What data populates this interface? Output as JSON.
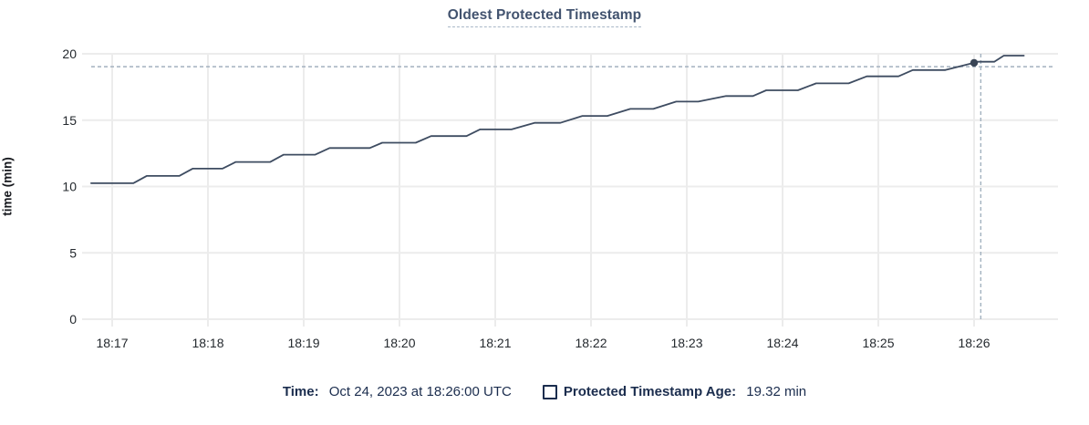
{
  "chart_data": {
    "type": "line",
    "title": "Oldest Protected Timestamp",
    "xlabel": "",
    "ylabel": "time (min)",
    "ylim": [
      0,
      20
    ],
    "y_ticks": [
      0,
      5,
      10,
      15,
      20
    ],
    "x_ticks": [
      "18:17",
      "18:18",
      "18:19",
      "18:20",
      "18:21",
      "18:22",
      "18:23",
      "18:24",
      "18:25",
      "18:26"
    ],
    "grid": true,
    "legend_position": "bottom",
    "series": [
      {
        "name": "Protected Timestamp Age",
        "unit": "min",
        "points_min_after_1817": [
          [
            -0.22,
            10.25
          ],
          [
            0.22,
            10.25
          ],
          [
            0.36,
            10.8
          ],
          [
            0.7,
            10.8
          ],
          [
            0.84,
            11.35
          ],
          [
            1.15,
            11.35
          ],
          [
            1.29,
            11.85
          ],
          [
            1.65,
            11.85
          ],
          [
            1.79,
            12.4
          ],
          [
            2.12,
            12.4
          ],
          [
            2.27,
            12.9
          ],
          [
            2.69,
            12.9
          ],
          [
            2.82,
            13.3
          ],
          [
            3.17,
            13.3
          ],
          [
            3.33,
            13.8
          ],
          [
            3.7,
            13.8
          ],
          [
            3.84,
            14.3
          ],
          [
            4.17,
            14.3
          ],
          [
            4.41,
            14.8
          ],
          [
            4.68,
            14.8
          ],
          [
            4.91,
            15.32
          ],
          [
            5.17,
            15.32
          ],
          [
            5.41,
            15.85
          ],
          [
            5.65,
            15.85
          ],
          [
            5.89,
            16.4
          ],
          [
            6.12,
            16.4
          ],
          [
            6.41,
            16.82
          ],
          [
            6.69,
            16.82
          ],
          [
            6.83,
            17.25
          ],
          [
            7.16,
            17.25
          ],
          [
            7.35,
            17.77
          ],
          [
            7.69,
            17.77
          ],
          [
            7.88,
            18.3
          ],
          [
            8.21,
            18.3
          ],
          [
            8.36,
            18.78
          ],
          [
            8.7,
            18.78
          ],
          [
            9.04,
            19.4
          ],
          [
            9.21,
            19.4
          ],
          [
            9.31,
            19.86
          ],
          [
            9.52,
            19.86
          ]
        ]
      }
    ],
    "highlighted_point": {
      "time": "18:26:00",
      "t_min": 9.0,
      "value": 19.32
    },
    "crosshair": {
      "t_min": 9.07,
      "value": 19.03
    }
  },
  "footer": {
    "time_label": "Time:",
    "time_value": " Oct 24, 2023 at 18:26:00 UTC",
    "series_label": "Protected Timestamp Age:",
    "series_value": " 19.32 min",
    "checkbox_checked": false
  },
  "colors": {
    "title": "#42536f",
    "footer_text": "#1b2d4e",
    "axis_text": "#24292e",
    "line": "#3e4c61",
    "dot": "#394455",
    "grid": "#ececec",
    "crosshair": "#a2b1bf"
  }
}
